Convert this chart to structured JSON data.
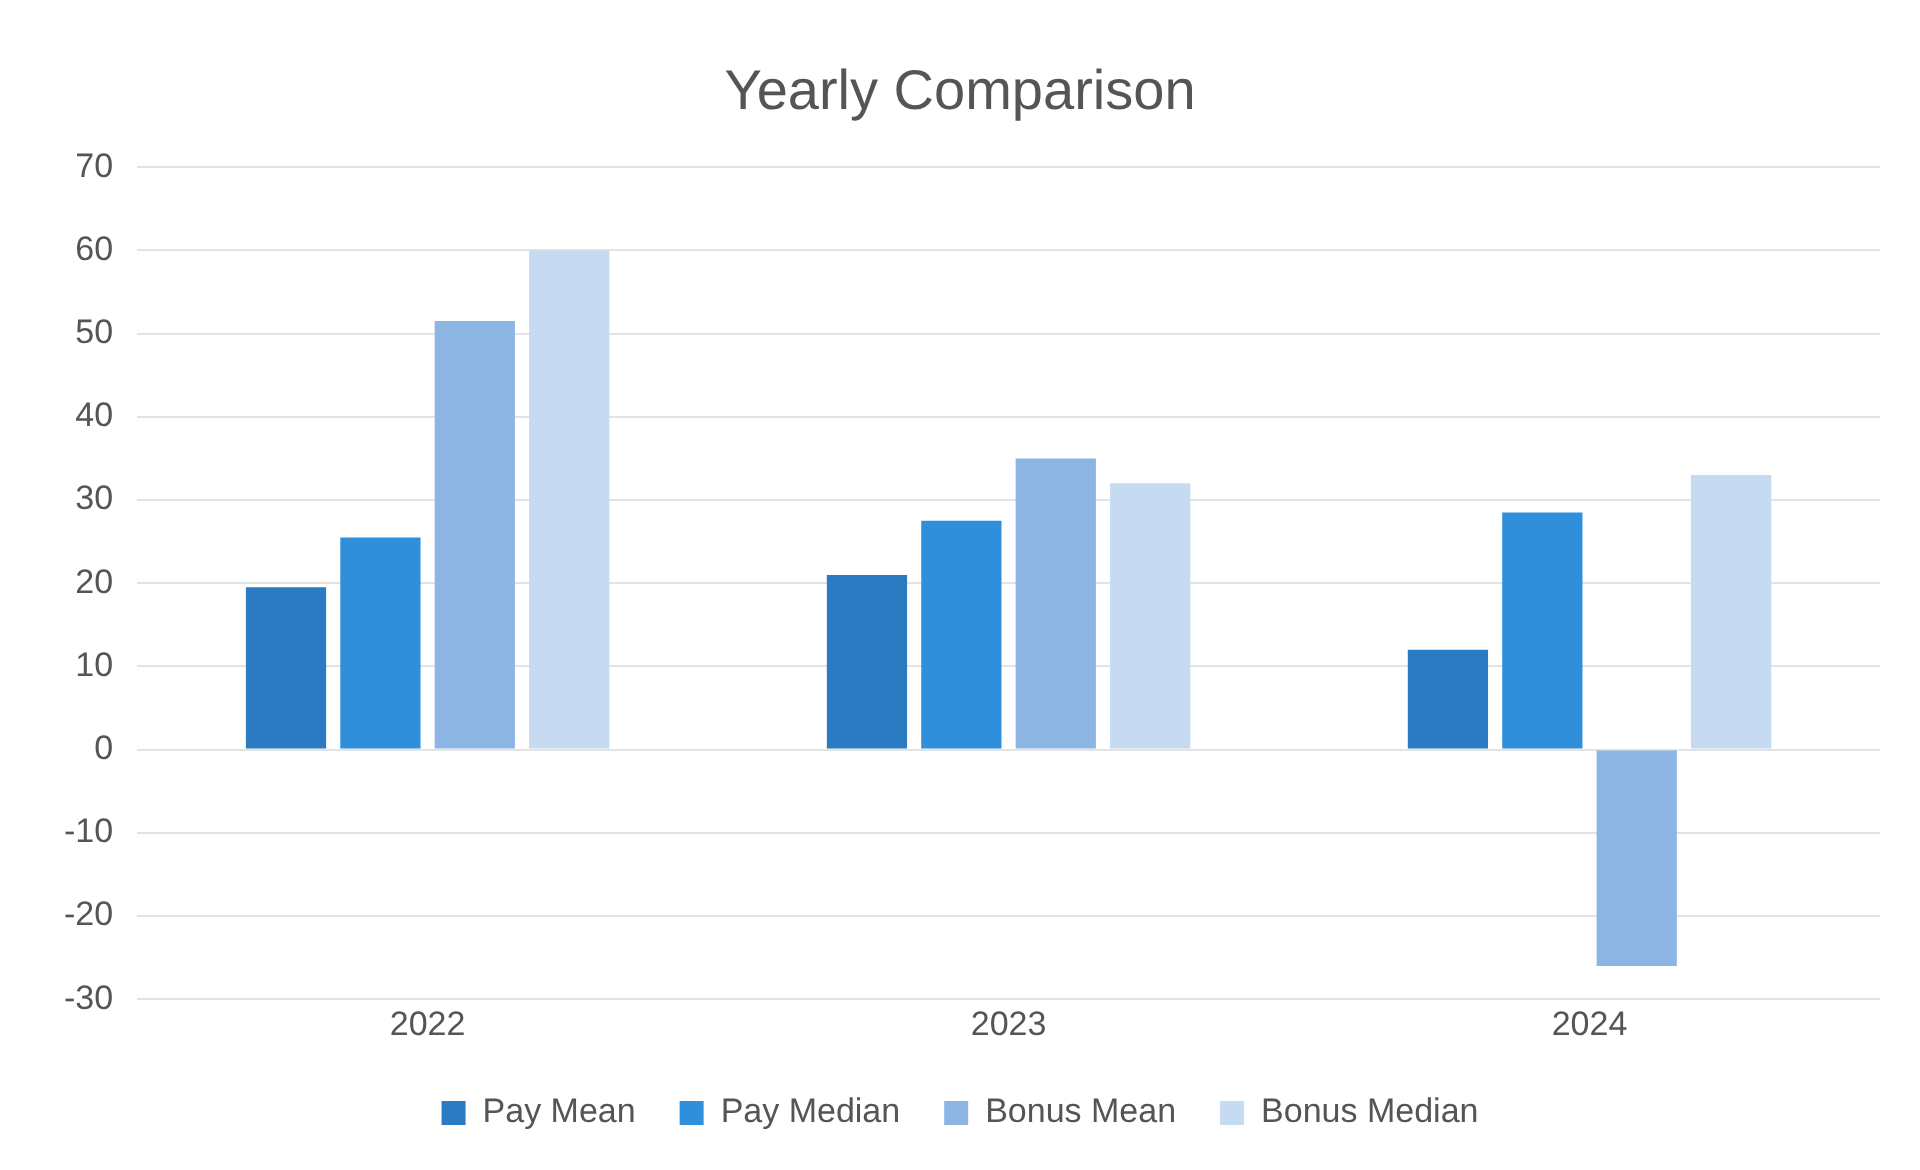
{
  "chart_data": {
    "type": "bar",
    "title": "Yearly Comparison",
    "categories": [
      "2022",
      "2023",
      "2024"
    ],
    "series": [
      {
        "name": "Pay Mean",
        "color": "#2a7bc2",
        "values": [
          19.5,
          21,
          12
        ]
      },
      {
        "name": "Pay Median",
        "color": "#2f8fdb",
        "values": [
          25.5,
          27.5,
          28.5
        ]
      },
      {
        "name": "Bonus Mean",
        "color": "#8db5e3",
        "values": [
          51.5,
          35,
          -26
        ]
      },
      {
        "name": "Bonus Median",
        "color": "#c6daf1",
        "values": [
          60,
          32,
          33
        ]
      }
    ],
    "ylim": [
      -30,
      70
    ],
    "yticks": [
      -30,
      -20,
      -10,
      0,
      10,
      20,
      30,
      40,
      50,
      60,
      70
    ],
    "grid": "y",
    "legend": "bottom"
  }
}
